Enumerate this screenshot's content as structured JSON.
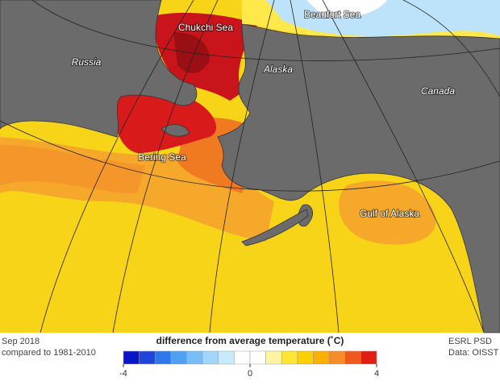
{
  "map": {
    "labels": [
      "Chukchi Sea",
      "Beaufort Sea",
      "Russia",
      "Alaska",
      "Canada",
      "Bering Sea",
      "Gulf of Alaska"
    ]
  },
  "footer": {
    "left": [
      "Sep 2018",
      "compared to 1981-2010"
    ],
    "right": [
      "ESRL PSD",
      "Data: OISST"
    ]
  },
  "colorbar": {
    "title": "difference from average temperature (˚C)",
    "lim": [
      -4,
      4
    ],
    "ticks": [
      -4,
      0,
      4
    ],
    "bins": [
      -4,
      -3.5,
      -3,
      -2.5,
      -2,
      -1.5,
      -1,
      -0.5,
      0,
      0.5,
      1,
      1.5,
      2,
      2.5,
      3,
      3.5,
      4
    ],
    "colors": [
      "#0a14c8",
      "#1e46dc",
      "#2c78ec",
      "#50a0f2",
      "#78bef6",
      "#a0d6fa",
      "#c8ebfc",
      "#ffffff",
      "#ffffff",
      "#fff5a0",
      "#ffe632",
      "#fcd000",
      "#fab000",
      "#f68c28",
      "#ee5a1e",
      "#e01e14",
      "#a00a14"
    ]
  }
}
